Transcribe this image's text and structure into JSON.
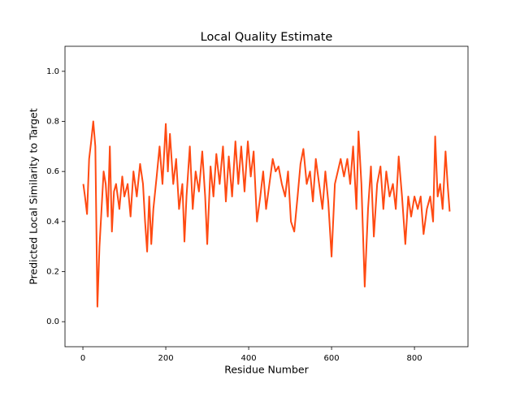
{
  "chart_data": {
    "type": "line",
    "title": "Local Quality Estimate",
    "xlabel": "Residue Number",
    "ylabel": "Predicted Local Similarity to Target",
    "xlim": [
      -43.2,
      929.2
    ],
    "ylim": [
      -0.1,
      1.1
    ],
    "xticks": [
      0,
      200,
      400,
      600,
      800
    ],
    "yticks": [
      {
        "value": 0,
        "label": "0.0"
      },
      0.2,
      0.4,
      0.6,
      0.8,
      {
        "value": 1,
        "label": "1.0"
      }
    ],
    "x": [
      1,
      5,
      10,
      15,
      20,
      25,
      30,
      35,
      40,
      45,
      50,
      55,
      60,
      65,
      70,
      75,
      80,
      88,
      95,
      100,
      108,
      115,
      122,
      130,
      138,
      145,
      150,
      155,
      160,
      165,
      170,
      178,
      185,
      192,
      200,
      205,
      210,
      218,
      225,
      232,
      240,
      245,
      250,
      258,
      265,
      272,
      280,
      288,
      295,
      300,
      308,
      315,
      322,
      330,
      338,
      345,
      352,
      360,
      368,
      375,
      382,
      390,
      398,
      405,
      412,
      420,
      428,
      435,
      442,
      450,
      458,
      465,
      472,
      480,
      488,
      495,
      502,
      510,
      518,
      525,
      532,
      540,
      548,
      555,
      562,
      570,
      578,
      585,
      592,
      600,
      608,
      615,
      622,
      630,
      638,
      645,
      652,
      660,
      665,
      672,
      680,
      688,
      695,
      702,
      710,
      718,
      725,
      732,
      740,
      748,
      755,
      762,
      770,
      778,
      785,
      792,
      800,
      808,
      815,
      822,
      830,
      838,
      845,
      850,
      856,
      862,
      868,
      875,
      880,
      885
    ],
    "series": [
      {
        "color": "#ff4a12",
        "values": [
          0.55,
          0.5,
          0.43,
          0.65,
          0.72,
          0.8,
          0.7,
          0.06,
          0.3,
          0.45,
          0.6,
          0.55,
          0.42,
          0.7,
          0.36,
          0.52,
          0.55,
          0.45,
          0.58,
          0.5,
          0.55,
          0.42,
          0.6,
          0.5,
          0.63,
          0.55,
          0.4,
          0.28,
          0.5,
          0.31,
          0.45,
          0.58,
          0.7,
          0.55,
          0.79,
          0.6,
          0.75,
          0.55,
          0.65,
          0.45,
          0.55,
          0.32,
          0.5,
          0.7,
          0.45,
          0.6,
          0.52,
          0.68,
          0.5,
          0.31,
          0.62,
          0.5,
          0.67,
          0.55,
          0.7,
          0.48,
          0.66,
          0.5,
          0.72,
          0.55,
          0.7,
          0.52,
          0.72,
          0.58,
          0.68,
          0.4,
          0.5,
          0.6,
          0.45,
          0.55,
          0.65,
          0.6,
          0.62,
          0.55,
          0.5,
          0.6,
          0.4,
          0.36,
          0.5,
          0.63,
          0.69,
          0.55,
          0.6,
          0.48,
          0.65,
          0.55,
          0.45,
          0.6,
          0.48,
          0.26,
          0.55,
          0.6,
          0.65,
          0.58,
          0.65,
          0.55,
          0.7,
          0.45,
          0.76,
          0.55,
          0.14,
          0.45,
          0.62,
          0.34,
          0.55,
          0.62,
          0.45,
          0.6,
          0.5,
          0.55,
          0.45,
          0.66,
          0.5,
          0.31,
          0.5,
          0.42,
          0.5,
          0.45,
          0.5,
          0.35,
          0.45,
          0.5,
          0.4,
          0.74,
          0.5,
          0.55,
          0.45,
          0.68,
          0.55,
          0.44
        ]
      }
    ]
  }
}
